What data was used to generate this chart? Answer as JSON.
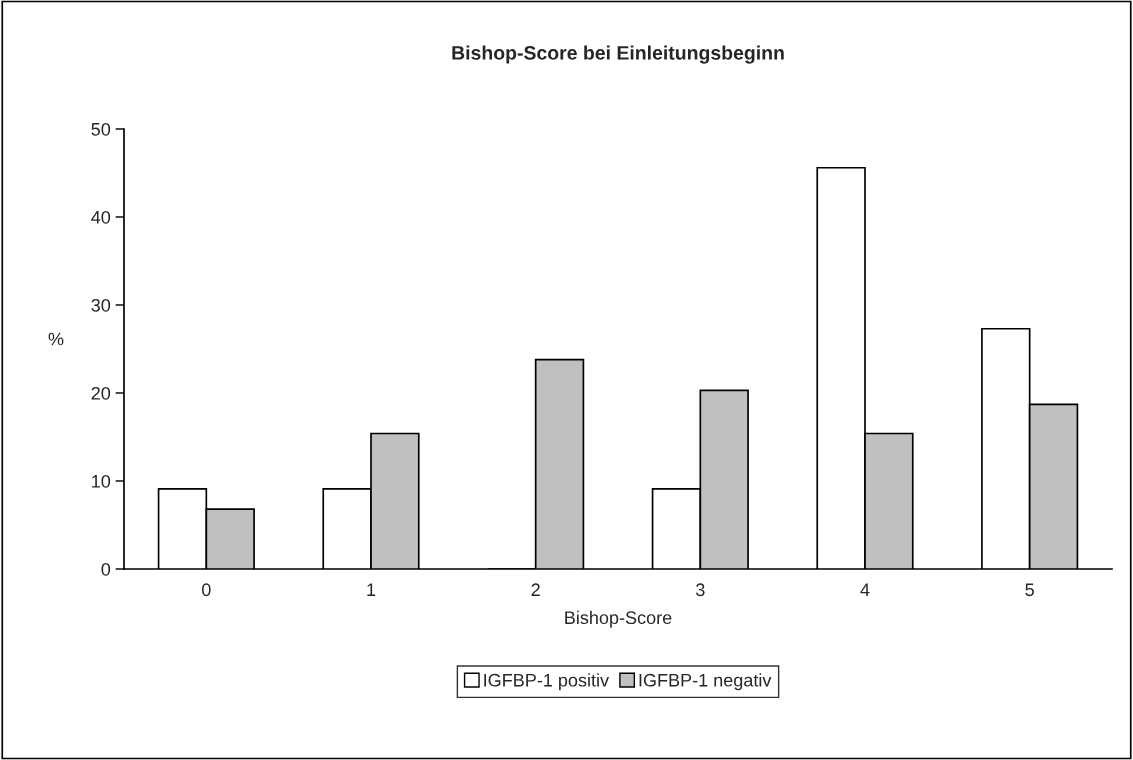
{
  "chart_data": {
    "type": "bar",
    "title": "Bishop-Score bei Einleitungsbeginn",
    "xlabel": "Bishop-Score",
    "ylabel": "%",
    "categories": [
      "0",
      "1",
      "2",
      "3",
      "4",
      "5"
    ],
    "series": [
      {
        "name": "IGFBP-1 positiv",
        "color": "#ffffff",
        "values": [
          9.1,
          9.1,
          0,
          9.1,
          45.6,
          27.3
        ]
      },
      {
        "name": "IGFBP-1 negativ",
        "color": "#c0c0c0",
        "values": [
          6.8,
          15.4,
          23.8,
          20.3,
          15.4,
          18.7
        ]
      }
    ],
    "ylim": [
      0,
      50
    ],
    "yticks": [
      0,
      10,
      20,
      30,
      40,
      50
    ],
    "grid": false,
    "legend": "bottom"
  }
}
